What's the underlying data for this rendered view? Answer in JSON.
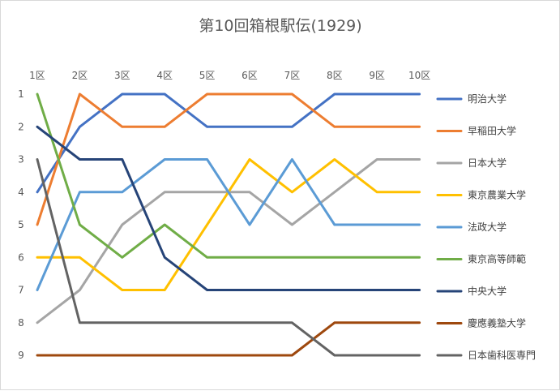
{
  "chart_data": {
    "type": "line",
    "title": "第10回箱根駅伝(1929)",
    "categories": [
      "1区",
      "2区",
      "3区",
      "4区",
      "5区",
      "6区",
      "7区",
      "8区",
      "9区",
      "10区"
    ],
    "y_ticks": [
      1,
      2,
      3,
      4,
      5,
      6,
      7,
      8,
      9
    ],
    "ylim": [
      1,
      9
    ],
    "y_reversed": true,
    "x_axis_position": "top",
    "grid": false,
    "legend_position": "right",
    "series": [
      {
        "name": "明治大学",
        "color": "#4472C4",
        "values": [
          4,
          2,
          1,
          1,
          2,
          2,
          2,
          1,
          1,
          1
        ]
      },
      {
        "name": "早稲田大学",
        "color": "#ED7D31",
        "values": [
          5,
          1,
          2,
          2,
          1,
          1,
          1,
          2,
          2,
          2
        ]
      },
      {
        "name": "日本大学",
        "color": "#A5A5A5",
        "values": [
          8,
          7,
          5,
          4,
          4,
          4,
          5,
          4,
          3,
          3
        ]
      },
      {
        "name": "東京農業大学",
        "color": "#FFC000",
        "values": [
          6,
          6,
          7,
          7,
          5,
          3,
          4,
          3,
          4,
          4
        ]
      },
      {
        "name": "法政大学",
        "color": "#5B9BD5",
        "values": [
          7,
          4,
          4,
          3,
          3,
          5,
          3,
          5,
          5,
          5
        ]
      },
      {
        "name": "東京高等師範",
        "color": "#70AD47",
        "values": [
          1,
          5,
          6,
          5,
          6,
          6,
          6,
          6,
          6,
          6
        ]
      },
      {
        "name": "中央大学",
        "color": "#264478",
        "values": [
          2,
          3,
          3,
          6,
          7,
          7,
          7,
          7,
          7,
          7
        ]
      },
      {
        "name": "慶應義塾大学",
        "color": "#9E480E",
        "values": [
          9,
          9,
          9,
          9,
          9,
          9,
          9,
          8,
          8,
          8
        ]
      },
      {
        "name": "日本歯科医専門",
        "color": "#636363",
        "values": [
          3,
          8,
          8,
          8,
          8,
          8,
          8,
          9,
          9,
          9
        ]
      }
    ]
  }
}
